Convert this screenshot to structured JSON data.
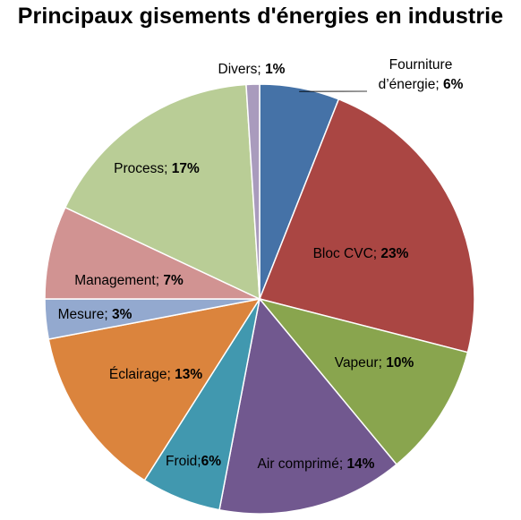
{
  "chart_data": {
    "type": "pie",
    "title": "Principaux gisements d'énergies en industrie",
    "slices": [
      {
        "label": "Fourniture d’énergie",
        "value": 6,
        "display": "6%",
        "color": "#4572A7"
      },
      {
        "label": "Bloc CVC",
        "value": 23,
        "display": "23%",
        "color": "#AA4643"
      },
      {
        "label": "Vapeur",
        "value": 10,
        "display": "10%",
        "color": "#89A54E"
      },
      {
        "label": "Air comprimé",
        "value": 14,
        "display": "14%",
        "color": "#71588F"
      },
      {
        "label": "Froid",
        "value": 6,
        "display": "6%",
        "color": "#4198AF"
      },
      {
        "label": "Éclairage",
        "value": 13,
        "display": "13%",
        "color": "#DB843D"
      },
      {
        "label": "Mesure",
        "value": 3,
        "display": "3%",
        "color": "#93A9CF"
      },
      {
        "label": "Management",
        "value": 7,
        "display": "7%",
        "color": "#D19392"
      },
      {
        "label": "Process",
        "value": 17,
        "display": "17%",
        "color": "#B9CD96"
      },
      {
        "label": "Divers",
        "value": 1,
        "display": "1%",
        "color": "#A99BBD"
      }
    ]
  }
}
